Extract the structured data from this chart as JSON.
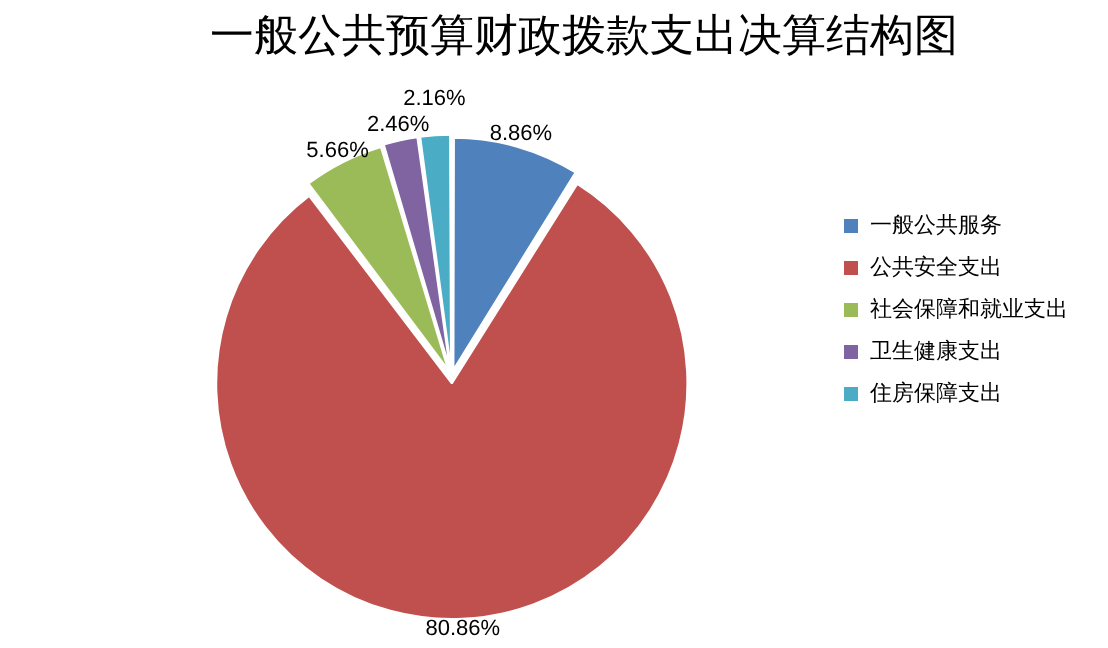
{
  "chart_data": {
    "type": "pie",
    "title": "一般公共预算财政拨款支出决算结构图",
    "categories": [
      "一般公共服务",
      "公共安全支出",
      "社会保障和就业支出",
      "卫生健康支出",
      "住房保障支出"
    ],
    "values": [
      8.86,
      80.86,
      5.66,
      2.46,
      2.16
    ],
    "value_labels": [
      "8.86%",
      "80.86%",
      "5.66%",
      "2.46%",
      "2.16%"
    ],
    "colors": [
      "#4f81bd",
      "#c0504d",
      "#9bbb59",
      "#8064a2",
      "#4bacc6"
    ],
    "legend": "right"
  }
}
